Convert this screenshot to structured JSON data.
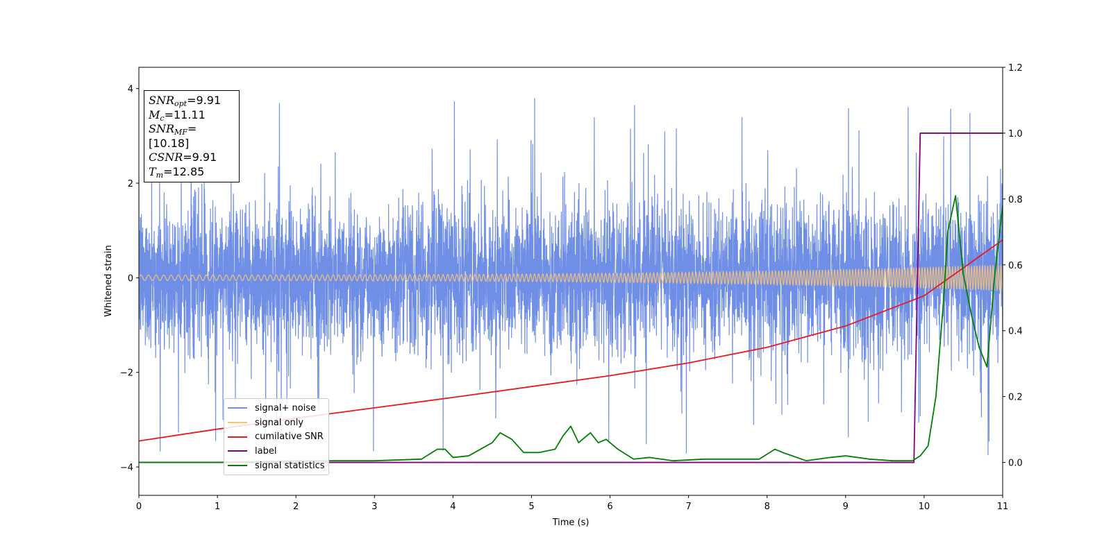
{
  "chart_data": {
    "type": "line",
    "xlabel": "Time (s)",
    "ylabel": "Whitened strain",
    "xlim": [
      0,
      11
    ],
    "ylim": [
      -4.6,
      4.45
    ],
    "y2lim": [
      -0.1,
      1.2
    ],
    "xticks": [
      "0",
      "1",
      "2",
      "3",
      "4",
      "5",
      "6",
      "7",
      "8",
      "9",
      "10",
      "11"
    ],
    "yticks": [
      "4",
      "2",
      "0",
      "−2",
      "−4"
    ],
    "y2ticks": [
      "1.2",
      "1.0",
      "0.8",
      "0.6",
      "0.4",
      "0.2",
      "0.0"
    ],
    "info": {
      "snr_opt": "9.91",
      "mc": "11.11",
      "snr_mf": "[10.18]",
      "csnr": "9.91",
      "tm": "12.85"
    },
    "series": [
      {
        "name": "signal+ noise",
        "color": "#6f8ee6",
        "axis": "left",
        "description": "whitened noisy strain, roughly zero-mean with std ~0.8, peaks to ~±4"
      },
      {
        "name": "signal only",
        "color": "#f5c27a",
        "axis": "left",
        "amplitude_start": 0.06,
        "amplitude_end": 0.28,
        "description": "chirp sinusoid growing slowly in amplitude"
      },
      {
        "name": "cumilative SNR",
        "color": "#e8191c",
        "axis": "left",
        "x": [
          0,
          1,
          2,
          3,
          4,
          5,
          6,
          7,
          8,
          9,
          10,
          11
        ],
        "values": [
          -3.45,
          -3.2,
          -2.97,
          -2.75,
          -2.53,
          -2.3,
          -2.07,
          -1.8,
          -1.47,
          -1.02,
          -0.38,
          0.8
        ]
      },
      {
        "name": "label",
        "color": "#800080",
        "axis": "right",
        "x": [
          0,
          9.87,
          9.95,
          11
        ],
        "values": [
          0.0,
          0.0,
          1.0,
          1.0
        ]
      },
      {
        "name": "signal statistics",
        "color": "#008000",
        "axis": "right",
        "x": [
          0,
          1,
          2,
          3,
          3.6,
          3.8,
          3.9,
          4.0,
          4.2,
          4.5,
          4.6,
          4.75,
          4.9,
          5.1,
          5.3,
          5.4,
          5.5,
          5.6,
          5.75,
          5.85,
          5.95,
          6.1,
          6.3,
          6.5,
          6.8,
          7.2,
          7.5,
          7.9,
          8.1,
          8.2,
          8.5,
          8.8,
          9.0,
          9.3,
          9.6,
          9.85,
          9.95,
          10.05,
          10.15,
          10.25,
          10.3,
          10.4,
          10.5,
          10.6,
          10.7,
          10.8,
          10.9,
          11.0
        ],
        "values": [
          0.0,
          0.0,
          0.005,
          0.005,
          0.01,
          0.04,
          0.04,
          0.015,
          0.02,
          0.06,
          0.09,
          0.07,
          0.03,
          0.03,
          0.04,
          0.08,
          0.11,
          0.06,
          0.09,
          0.06,
          0.07,
          0.04,
          0.01,
          0.015,
          0.005,
          0.01,
          0.01,
          0.01,
          0.04,
          0.03,
          0.005,
          0.015,
          0.02,
          0.01,
          0.005,
          0.005,
          0.02,
          0.05,
          0.2,
          0.5,
          0.7,
          0.81,
          0.57,
          0.45,
          0.35,
          0.29,
          0.57,
          0.78
        ]
      }
    ]
  }
}
